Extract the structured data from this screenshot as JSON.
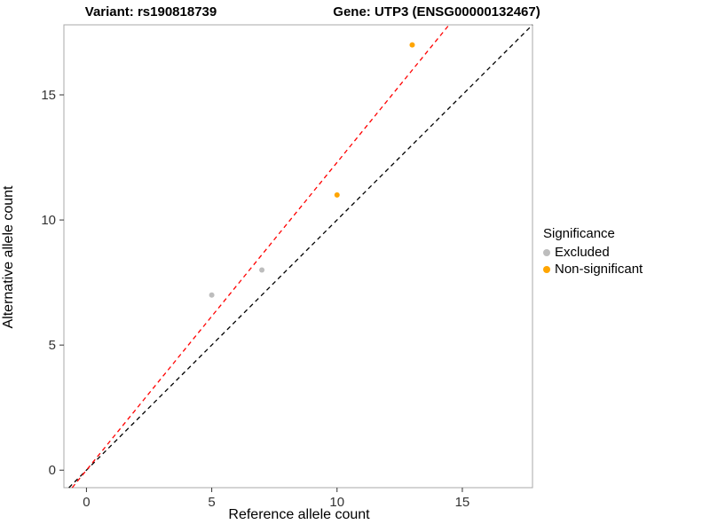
{
  "titles": {
    "left": "Variant: rs190818739",
    "right": "Gene: UTP3 (ENSG00000132467)"
  },
  "axes": {
    "x_label": "Reference allele count",
    "y_label": "Alternative allele count",
    "x_ticks": [
      0,
      5,
      10,
      15
    ],
    "y_ticks": [
      0,
      5,
      10,
      15
    ],
    "xlim": [
      -0.9,
      17.8
    ],
    "ylim": [
      -0.7,
      17.8
    ]
  },
  "legend": {
    "title": "Significance",
    "items": [
      {
        "label": "Excluded",
        "color": "#bdbdbd"
      },
      {
        "label": "Non-significant",
        "color": "#FFA500"
      }
    ]
  },
  "chart_data": {
    "type": "scatter",
    "title_left": "Variant: rs190818739",
    "title_right": "Gene: UTP3 (ENSG00000132467)",
    "xlabel": "Reference allele count",
    "ylabel": "Alternative allele count",
    "xlim": [
      -0.9,
      17.8
    ],
    "ylim": [
      -0.7,
      17.8
    ],
    "grid": false,
    "legend_position": "right",
    "series": [
      {
        "name": "Excluded",
        "color": "#bdbdbd",
        "points": [
          [
            5,
            7
          ],
          [
            7,
            8
          ]
        ]
      },
      {
        "name": "Non-significant",
        "color": "#FFA500",
        "points": [
          [
            10,
            11
          ],
          [
            13,
            17
          ]
        ]
      }
    ],
    "lines": [
      {
        "name": "identity",
        "slope": 1.0,
        "intercept": 0,
        "color": "#000000",
        "style": "dashed"
      },
      {
        "name": "fit",
        "slope": 1.23,
        "intercept": 0,
        "color": "#FF0000",
        "style": "dashed"
      }
    ]
  }
}
